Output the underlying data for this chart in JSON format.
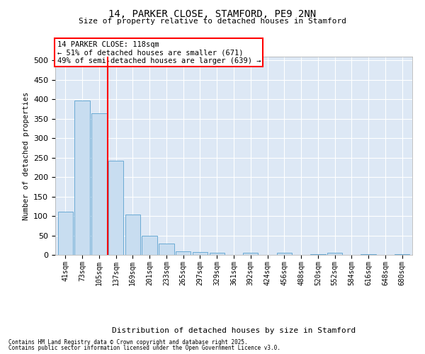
{
  "title1": "14, PARKER CLOSE, STAMFORD, PE9 2NN",
  "title2": "Size of property relative to detached houses in Stamford",
  "xlabel": "Distribution of detached houses by size in Stamford",
  "ylabel": "Number of detached properties",
  "categories": [
    "41sqm",
    "73sqm",
    "105sqm",
    "137sqm",
    "169sqm",
    "201sqm",
    "233sqm",
    "265sqm",
    "297sqm",
    "329sqm",
    "361sqm",
    "392sqm",
    "424sqm",
    "456sqm",
    "488sqm",
    "520sqm",
    "552sqm",
    "584sqm",
    "616sqm",
    "648sqm",
    "680sqm"
  ],
  "values": [
    112,
    397,
    365,
    242,
    104,
    50,
    29,
    9,
    8,
    5,
    0,
    6,
    0,
    5,
    0,
    2,
    6,
    0,
    1,
    0,
    1
  ],
  "bar_color": "#c8ddf0",
  "bar_edge_color": "#6aaad4",
  "vline_color": "red",
  "vline_pos": 2.5,
  "annotation_title": "14 PARKER CLOSE: 118sqm",
  "annotation_line1": "← 51% of detached houses are smaller (671)",
  "annotation_line2": "49% of semi-detached houses are larger (639) →",
  "ylim": [
    0,
    510
  ],
  "yticks": [
    0,
    50,
    100,
    150,
    200,
    250,
    300,
    350,
    400,
    450,
    500
  ],
  "background_color": "#dde8f5",
  "footer1": "Contains HM Land Registry data © Crown copyright and database right 2025.",
  "footer2": "Contains public sector information licensed under the Open Government Licence v3.0."
}
